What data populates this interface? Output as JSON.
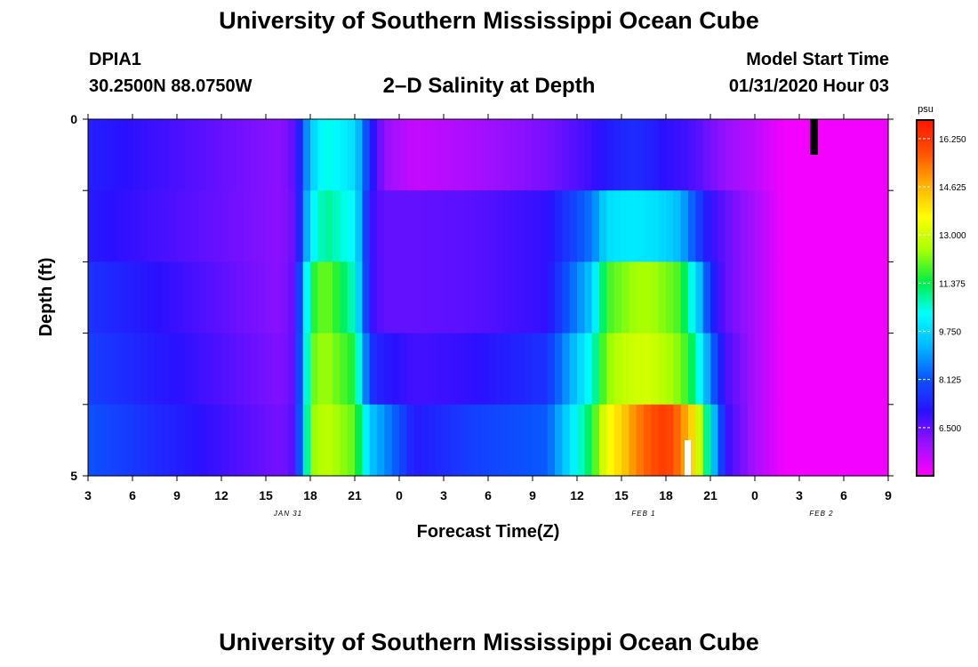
{
  "header": {
    "title": "University of Southern Mississippi Ocean Cube",
    "station_name": "DPIA1",
    "station_coords": "30.2500N 88.0750W",
    "chart_title": "2–D Salinity at Depth",
    "model_start_label": "Model Start Time",
    "model_start_value": "01/31/2020 Hour 03"
  },
  "footer": {
    "title": "University of Southern Mississippi Ocean Cube"
  },
  "chart_data": {
    "type": "heatmap",
    "title": "2–D Salinity at Depth",
    "xlabel": "Forecast Time(Z)",
    "ylabel": "Depth (ft)",
    "x_tick_labels": [
      "3",
      "6",
      "9",
      "12",
      "15",
      "18",
      "21",
      "0",
      "3",
      "6",
      "9",
      "12",
      "15",
      "18",
      "21",
      "0",
      "3",
      "6",
      "9"
    ],
    "date_labels": [
      {
        "text": "JAN 31",
        "after_tick": 4
      },
      {
        "text": "FEB 1",
        "after_tick": 12
      },
      {
        "text": "FEB 2",
        "after_tick": 16
      }
    ],
    "x_hours_range": [
      3,
      57
    ],
    "y_tick_labels": [
      {
        "value": 0,
        "label": "0"
      },
      {
        "value": 5,
        "label": "5"
      }
    ],
    "ylim": [
      0,
      5
    ],
    "depth_levels": 5,
    "colorbar": {
      "unit": "psu",
      "tick_labels": [
        "16.250",
        "14.625",
        "13.000",
        "11.375",
        "9.750",
        "8.125",
        "6.500"
      ],
      "range": [
        4.875,
        16.875
      ],
      "colors": [
        "#ff00ff",
        "#9a10ff",
        "#2a10ff",
        "#0a55ff",
        "#00b8ff",
        "#00ffff",
        "#00ee44",
        "#aaff00",
        "#ffff00",
        "#ffb000",
        "#ff5000",
        "#ff1500"
      ]
    },
    "hour_knots": [
      3,
      16,
      17,
      18,
      19,
      20,
      21,
      22,
      23,
      25,
      29,
      34,
      37,
      38,
      39,
      40,
      41,
      42,
      43,
      44,
      45,
      46,
      48,
      50,
      57
    ],
    "salinity_by_layer": [
      [
        7.3,
        6.1,
        6.6,
        9.5,
        10.5,
        10.2,
        9.8,
        7.5,
        6.0,
        5.5,
        5.8,
        6.3,
        6.9,
        7.2,
        7.4,
        7.5,
        7.3,
        7.0,
        6.9,
        6.7,
        6.3,
        6.0,
        5.6,
        5.0,
        5.0
      ],
      [
        7.2,
        6.1,
        6.5,
        10.0,
        11.0,
        10.6,
        10.2,
        7.0,
        6.5,
        6.5,
        6.6,
        7.0,
        8.5,
        9.8,
        10.0,
        10.0,
        9.9,
        9.7,
        9.2,
        8.0,
        7.0,
        6.5,
        5.8,
        5.0,
        5.0
      ],
      [
        7.6,
        6.1,
        6.6,
        11.5,
        12.2,
        11.5,
        10.5,
        7.0,
        6.5,
        6.5,
        6.6,
        7.0,
        9.5,
        11.8,
        12.2,
        12.5,
        12.5,
        12.2,
        11.8,
        10.0,
        7.5,
        6.5,
        5.8,
        5.0,
        5.0
      ],
      [
        7.8,
        6.2,
        6.6,
        12.0,
        12.5,
        12.0,
        11.5,
        7.6,
        7.2,
        6.8,
        7.0,
        7.6,
        10.5,
        12.3,
        12.8,
        13.0,
        13.0,
        12.6,
        12.2,
        11.0,
        8.5,
        6.8,
        5.8,
        5.0,
        5.0
      ],
      [
        8.1,
        6.3,
        6.7,
        12.3,
        12.8,
        12.4,
        12.0,
        9.5,
        8.8,
        7.2,
        7.8,
        8.2,
        11.5,
        13.5,
        14.2,
        15.2,
        15.8,
        16.2,
        15.3,
        13.8,
        10.0,
        7.0,
        5.8,
        5.0,
        5.0
      ]
    ]
  }
}
